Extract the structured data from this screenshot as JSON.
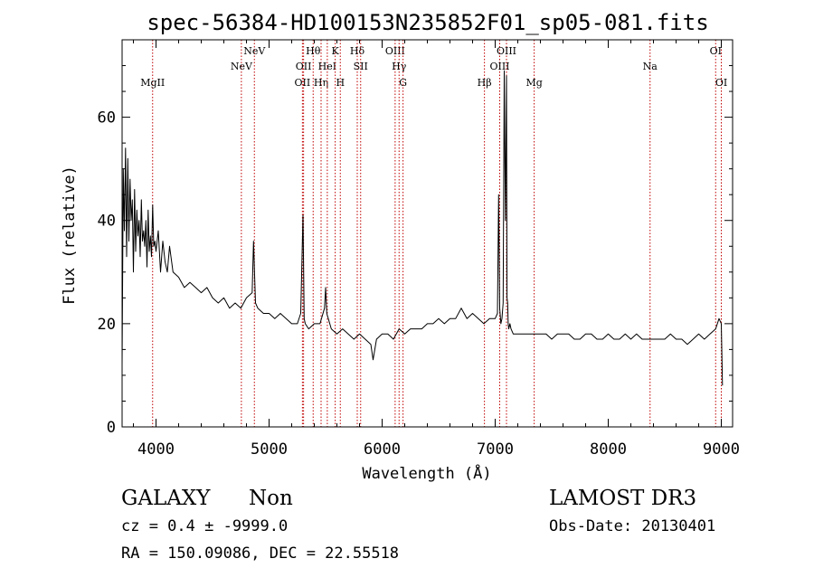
{
  "chart_data": {
    "type": "line",
    "title": "spec-56384-HD100153N235852F01_sp05-081.fits",
    "xlabel": "Wavelength (Å)",
    "ylabel": "Flux (relative)",
    "xlim": [
      3700,
      9100
    ],
    "ylim": [
      0,
      75
    ],
    "xticks": [
      4000,
      5000,
      6000,
      7000,
      8000,
      9000
    ],
    "yticks": [
      0,
      20,
      40,
      60
    ],
    "grid": false,
    "series": [
      {
        "color": "#000000",
        "x": [
          3700,
          3710,
          3720,
          3730,
          3740,
          3750,
          3760,
          3770,
          3780,
          3790,
          3800,
          3810,
          3820,
          3830,
          3840,
          3850,
          3860,
          3870,
          3880,
          3890,
          3900,
          3910,
          3920,
          3930,
          3940,
          3950,
          3960,
          3970,
          3980,
          3990,
          4000,
          4020,
          4040,
          4060,
          4080,
          4100,
          4120,
          4150,
          4200,
          4250,
          4300,
          4350,
          4400,
          4450,
          4500,
          4550,
          4600,
          4650,
          4700,
          4750,
          4800,
          4850,
          4862,
          4880,
          4900,
          4950,
          5000,
          5050,
          5100,
          5150,
          5200,
          5250,
          5280,
          5300,
          5310,
          5320,
          5350,
          5400,
          5450,
          5490,
          5500,
          5510,
          5550,
          5600,
          5650,
          5700,
          5750,
          5800,
          5850,
          5900,
          5920,
          5950,
          6000,
          6050,
          6100,
          6150,
          6200,
          6250,
          6300,
          6350,
          6400,
          6450,
          6500,
          6550,
          6600,
          6650,
          6700,
          6750,
          6800,
          6850,
          6900,
          6950,
          7000,
          7020,
          7030,
          7040,
          7050,
          7060,
          7070,
          7080,
          7090,
          7100,
          7105,
          7110,
          7115,
          7120,
          7130,
          7140,
          7160,
          7200,
          7250,
          7300,
          7350,
          7400,
          7450,
          7500,
          7550,
          7600,
          7650,
          7700,
          7750,
          7800,
          7850,
          7900,
          7950,
          8000,
          8050,
          8100,
          8150,
          8200,
          8250,
          8300,
          8350,
          8400,
          8450,
          8500,
          8550,
          8600,
          8650,
          8700,
          8750,
          8800,
          8850,
          8900,
          8950,
          8980,
          9000,
          9010
        ],
        "y": [
          12,
          50,
          38,
          54,
          33,
          52,
          36,
          48,
          40,
          44,
          30,
          46,
          34,
          42,
          37,
          40,
          33,
          44,
          36,
          38,
          35,
          40,
          31,
          42,
          34,
          37,
          33,
          43,
          35,
          36,
          34,
          38,
          30,
          36,
          32,
          30,
          35,
          30,
          29,
          27,
          28,
          27,
          26,
          27,
          25,
          24,
          25,
          23,
          24,
          23,
          25,
          26,
          36,
          24,
          23,
          22,
          22,
          21,
          22,
          21,
          20,
          20,
          22,
          41,
          21,
          20,
          19,
          20,
          20,
          23,
          27,
          22,
          19,
          18,
          19,
          18,
          17,
          18,
          17,
          16,
          13,
          17,
          18,
          18,
          17,
          19,
          18,
          19,
          19,
          19,
          20,
          20,
          21,
          20,
          21,
          21,
          23,
          21,
          22,
          21,
          20,
          21,
          21,
          22,
          45,
          23,
          20,
          21,
          24,
          69,
          40,
          68,
          25,
          24,
          20,
          19,
          20,
          19,
          18,
          18,
          18,
          18,
          18,
          18,
          18,
          17,
          18,
          18,
          18,
          17,
          17,
          18,
          18,
          17,
          17,
          18,
          17,
          17,
          18,
          17,
          18,
          17,
          17,
          17,
          17,
          17,
          18,
          17,
          17,
          16,
          17,
          18,
          17,
          18,
          19,
          21,
          20,
          8
        ]
      }
    ],
    "lines": [
      {
        "label": "MgII",
        "x": 3970,
        "row": 3
      },
      {
        "label": "NeV",
        "x": 4755,
        "row": 2
      },
      {
        "label": "NeV",
        "x": 4870,
        "row": 1
      },
      {
        "label": "OII",
        "x": 5295,
        "row": 3
      },
      {
        "label": "OII",
        "x": 5305,
        "row": 2
      },
      {
        "label": "Hθ",
        "x": 5390,
        "row": 1
      },
      {
        "label": "Hη",
        "x": 5460,
        "row": 3
      },
      {
        "label": "HeI",
        "x": 5515,
        "row": 2
      },
      {
        "label": "K",
        "x": 5585,
        "row": 1
      },
      {
        "label": "H",
        "x": 5630,
        "row": 3
      },
      {
        "label": "Hδ",
        "x": 5780,
        "row": 1
      },
      {
        "label": "SII",
        "x": 5810,
        "row": 2
      },
      {
        "label": "OIII",
        "x": 6115,
        "row": 1
      },
      {
        "label": "Hγ",
        "x": 6150,
        "row": 2
      },
      {
        "label": "G",
        "x": 6185,
        "row": 3
      },
      {
        "label": "Hβ",
        "x": 6905,
        "row": 3
      },
      {
        "label": "OIII",
        "x": 7040,
        "row": 2
      },
      {
        "label": "OIII",
        "x": 7100,
        "row": 1
      },
      {
        "label": "Mg",
        "x": 7345,
        "row": 3
      },
      {
        "label": "Na",
        "x": 8370,
        "row": 2
      },
      {
        "label": "OI",
        "x": 8950,
        "row": 1
      },
      {
        "label": "OI",
        "x": 9000,
        "row": 3
      }
    ]
  },
  "footer": {
    "class_label": "GALAXY",
    "subclass_label": "Non",
    "survey_label": "LAMOST DR3",
    "cz_text": "cz = 0.4 ± -9999.0",
    "obs_date_text": "Obs-Date: 20130401",
    "coords_text": "RA = 150.09086, DEC =  22.55518"
  }
}
